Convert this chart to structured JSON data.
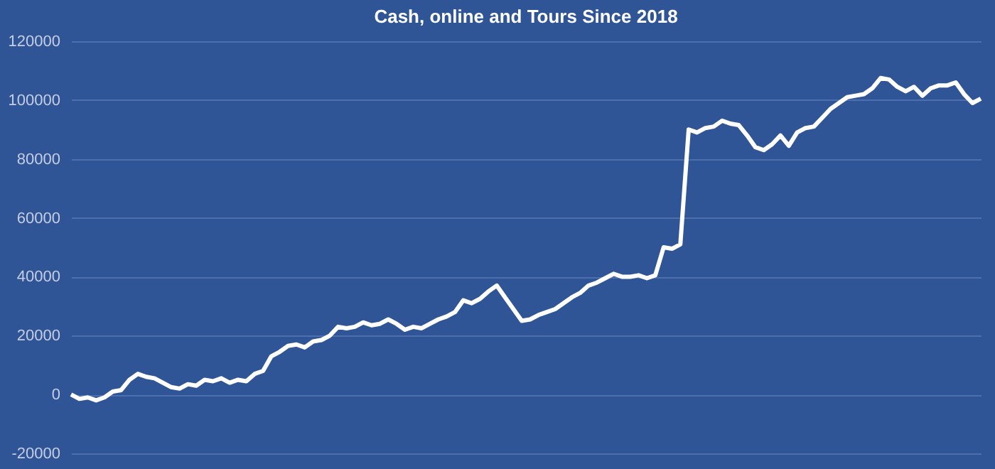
{
  "chart_data": {
    "type": "line",
    "title": "Cash, online and Tours Since 2018",
    "categories": [
      null,
      null,
      null,
      null,
      null,
      null,
      null,
      null,
      null,
      null,
      null,
      null,
      null,
      null,
      null,
      null,
      null,
      null,
      null,
      null,
      null,
      null,
      null,
      null,
      null,
      null,
      null,
      null,
      null,
      null,
      null,
      null,
      null,
      null,
      null,
      null,
      null,
      null,
      null,
      null,
      null,
      null,
      null,
      null,
      null,
      null,
      null,
      null,
      null,
      null,
      null,
      null,
      null,
      null,
      null,
      null,
      null,
      null,
      null,
      null,
      null,
      null,
      null,
      null,
      null,
      null,
      null,
      null,
      null,
      null,
      null,
      null,
      null,
      null,
      null,
      null,
      null,
      null,
      null,
      null,
      null,
      null,
      null,
      null,
      null,
      null,
      null,
      null,
      null,
      null,
      null,
      null,
      null,
      null,
      null,
      null,
      null,
      null,
      null,
      null,
      null,
      null,
      null,
      null,
      null,
      null,
      null,
      null,
      null,
      null
    ],
    "series": [
      {
        "color": "#ffffff",
        "values": [
          0,
          -1500,
          -1000,
          -2000,
          -1000,
          1000,
          1500,
          5000,
          7000,
          6000,
          5500,
          4000,
          2500,
          2000,
          3500,
          3000,
          5000,
          4500,
          5500,
          4000,
          5000,
          4500,
          7000,
          8000,
          13000,
          14500,
          16500,
          17000,
          16000,
          18000,
          18500,
          20000,
          23000,
          22500,
          23000,
          24500,
          23500,
          24000,
          25500,
          24000,
          22000,
          23000,
          22500,
          24000,
          25500,
          26500,
          28000,
          32000,
          31000,
          32500,
          35000,
          37000,
          33000,
          29000,
          25000,
          25500,
          27000,
          28000,
          29000,
          31000,
          33000,
          34500,
          37000,
          38000,
          39500,
          41000,
          40000,
          40000,
          40500,
          39500,
          40500,
          50000,
          49500,
          51000,
          90000,
          89000,
          90500,
          91000,
          93000,
          92000,
          91500,
          88000,
          84000,
          83000,
          85000,
          88000,
          84500,
          89000,
          90500,
          91000,
          94000,
          97000,
          99000,
          101000,
          101500,
          102000,
          104000,
          107500,
          107000,
          104500,
          103000,
          104500,
          101500,
          104000,
          105000,
          105000,
          106000,
          102000,
          99000,
          100500
        ]
      }
    ],
    "ylim": [
      -20000,
      120000
    ],
    "yticks": [
      -20000,
      0,
      20000,
      40000,
      60000,
      80000,
      100000,
      120000
    ],
    "grid": "y",
    "line_style": "solid"
  }
}
